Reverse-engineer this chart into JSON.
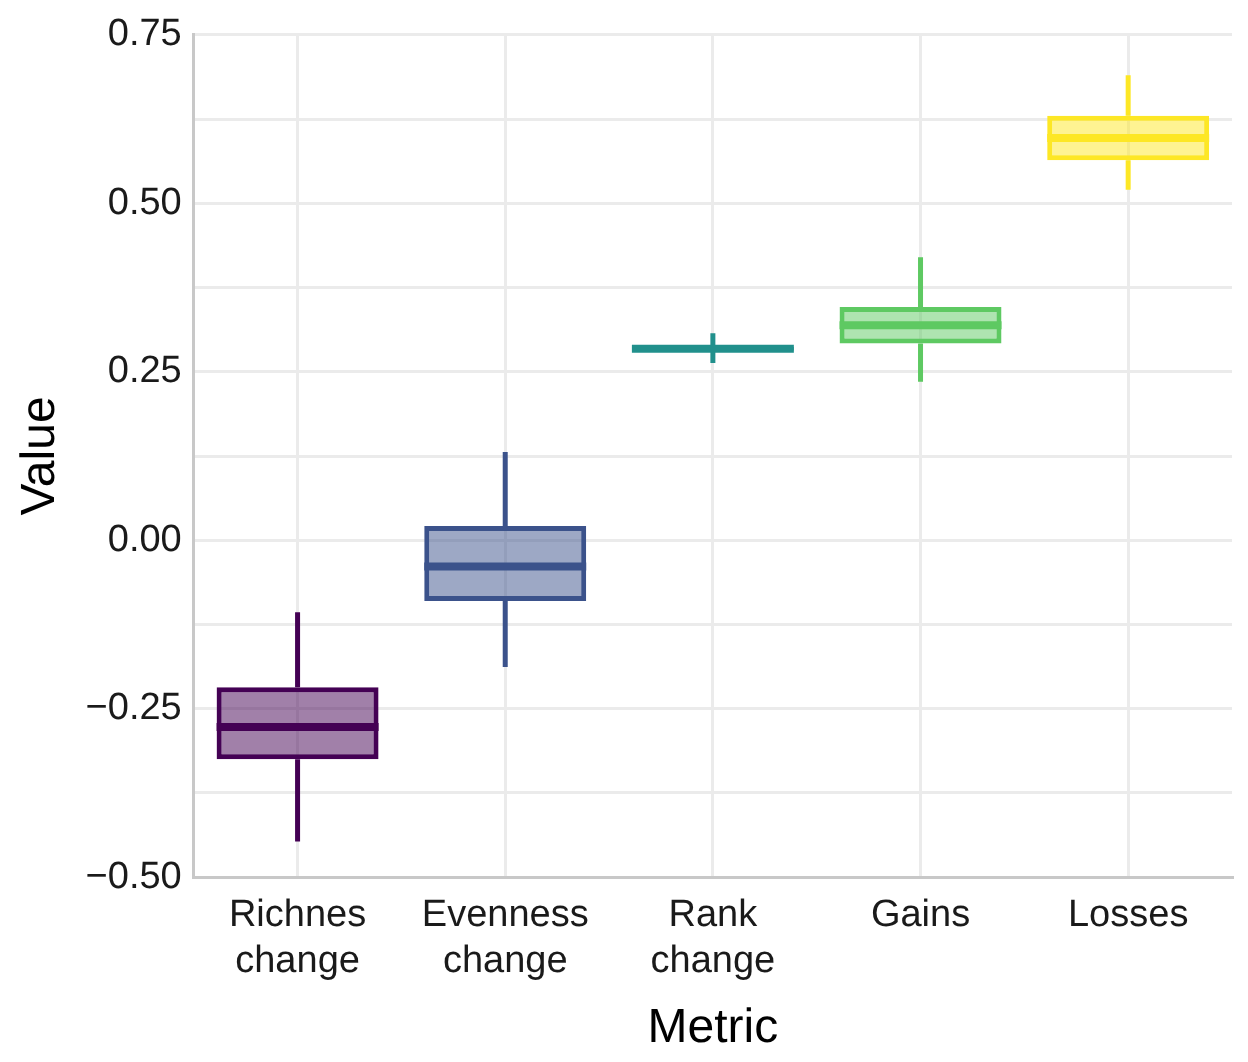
{
  "chart_data": {
    "type": "box",
    "xlabel": "Metric",
    "ylabel": "Value",
    "categories": [
      "Richnes\nchange",
      "Evenness\nchange",
      "Rank\nchange",
      "Gains",
      "Losses"
    ],
    "colors": [
      "#440154",
      "#3b528b",
      "#21908c",
      "#5ec962",
      "#fde725"
    ],
    "boxes": [
      {
        "low": -0.447,
        "q1": -0.325,
        "median": -0.277,
        "q3": -0.218,
        "high": -0.107
      },
      {
        "low": -0.188,
        "q1": -0.09,
        "median": -0.039,
        "q3": 0.021,
        "high": 0.131
      },
      {
        "low": 0.263,
        "q1": 0.281,
        "median": 0.284,
        "q3": 0.287,
        "high": 0.307
      },
      {
        "low": 0.235,
        "q1": 0.292,
        "median": 0.319,
        "q3": 0.346,
        "high": 0.42
      },
      {
        "low": 0.52,
        "q1": 0.564,
        "median": 0.597,
        "q3": 0.63,
        "high": 0.69
      }
    ],
    "ylim": [
      -0.5,
      0.75
    ],
    "yticks": [
      {
        "value": -0.5,
        "label": "−0.50"
      },
      {
        "value": -0.375,
        "label": null
      },
      {
        "value": -0.25,
        "label": "−0.25"
      },
      {
        "value": -0.125,
        "label": null
      },
      {
        "value": 0,
        "label": "0.00"
      },
      {
        "value": 0.125,
        "label": null
      },
      {
        "value": 0.25,
        "label": "0.25"
      },
      {
        "value": 0.375,
        "label": null
      },
      {
        "value": 0.5,
        "label": "0.50"
      },
      {
        "value": 0.625,
        "label": null
      },
      {
        "value": 0.75,
        "label": "0.75"
      }
    ],
    "grid": true
  }
}
